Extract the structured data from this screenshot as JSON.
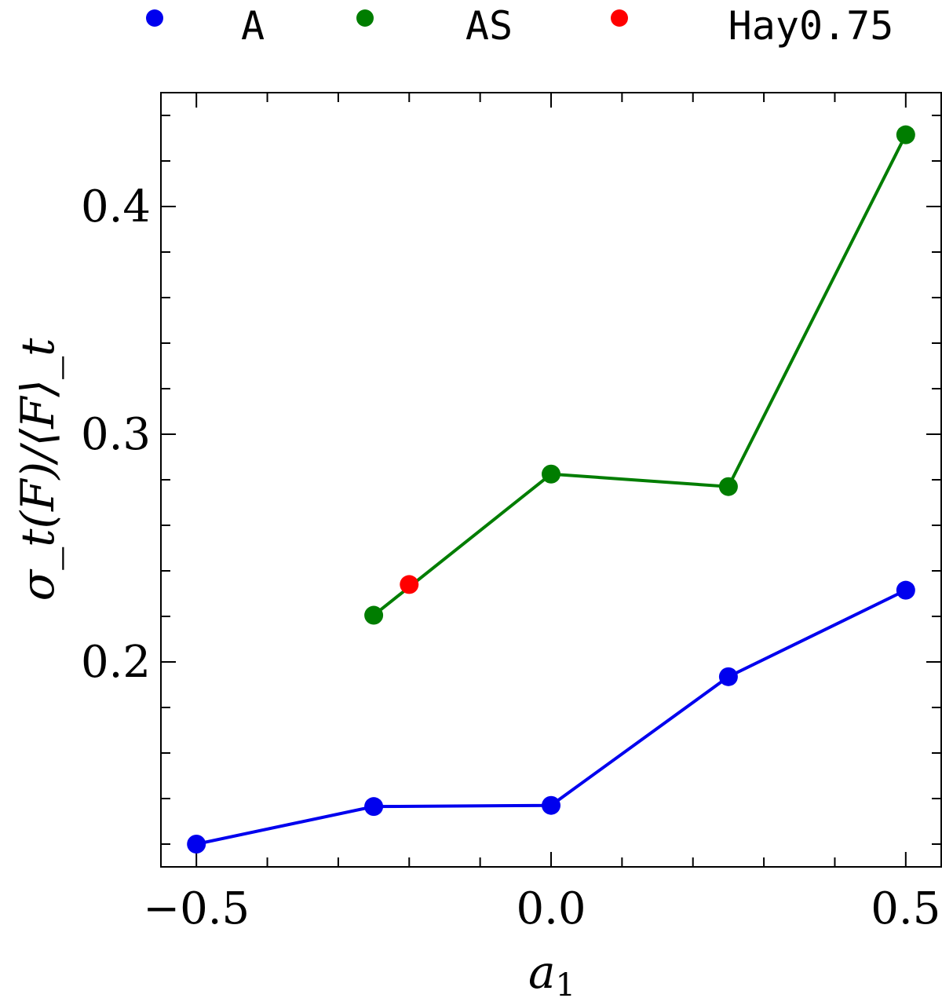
{
  "chart_data": {
    "type": "line",
    "xlabel": "a",
    "xlabel_sub": "1",
    "ylabel": "σ_t(F)/⟨F⟩_t",
    "xlim": [
      -0.55,
      0.55
    ],
    "ylim": [
      0.11,
      0.45
    ],
    "x_ticks": [
      -0.5,
      0.0,
      0.5
    ],
    "x_tick_labels": [
      "−0.5",
      "0.0",
      "0.5"
    ],
    "x_minor_ticks": [
      -0.4,
      -0.3,
      -0.2,
      -0.1,
      0.1,
      0.2,
      0.3,
      0.4
    ],
    "y_ticks": [
      0.2,
      0.3,
      0.4
    ],
    "y_tick_labels": [
      "0.2",
      "0.3",
      "0.4"
    ],
    "y_minor_ticks": [
      0.12,
      0.14,
      0.16,
      0.18,
      0.22,
      0.24,
      0.26,
      0.28,
      0.32,
      0.34,
      0.36,
      0.38,
      0.42,
      0.44
    ],
    "grid": false,
    "legend_position": "top",
    "series": [
      {
        "name": "A",
        "color": "#0000ee",
        "x": [
          -0.5,
          -0.25,
          0.0,
          0.25,
          0.5
        ],
        "y": [
          0.12,
          0.1365,
          0.137,
          0.1935,
          0.2315
        ],
        "line": true
      },
      {
        "name": "AS",
        "color": "#007d00",
        "x": [
          -0.25,
          0.0,
          0.25,
          0.5
        ],
        "y": [
          0.2205,
          0.2825,
          0.277,
          0.4315
        ],
        "line": true
      },
      {
        "name": "Hay0.75",
        "color": "#ff0000",
        "x": [
          -0.2
        ],
        "y": [
          0.234
        ],
        "line": false
      }
    ]
  }
}
